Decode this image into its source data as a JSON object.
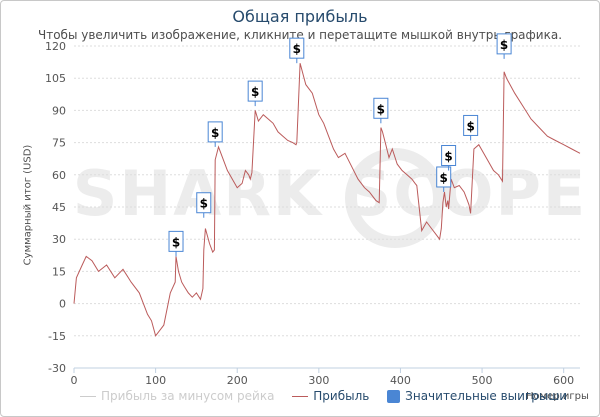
{
  "chart_data": {
    "type": "line",
    "title": "Общая прибыль",
    "subtitle": "Чтобы увеличить изображение, кликните и перетащите мышкой внутрь графика.",
    "xlabel": "Номер игры",
    "ylabel": "Суммарный итог (USD)",
    "xlim": [
      0,
      620
    ],
    "ylim": [
      -30,
      120
    ],
    "x_ticks": [
      0,
      100,
      200,
      300,
      400,
      500,
      600
    ],
    "y_ticks": [
      -30,
      -15,
      0,
      15,
      30,
      45,
      60,
      75,
      90,
      105,
      120
    ],
    "grid": "horizontal",
    "legend_position": "bottom",
    "watermark": "SHARK SCOPE",
    "series": [
      {
        "name": "Прибыль",
        "color": "#bb5b5b",
        "x": [
          0,
          3,
          10,
          15,
          22,
          30,
          40,
          50,
          60,
          70,
          80,
          90,
          95,
          100,
          106,
          110,
          118,
          124,
          125,
          128,
          132,
          135,
          140,
          145,
          150,
          155,
          158,
          159,
          161,
          166,
          170,
          172,
          173,
          177,
          182,
          188,
          194,
          200,
          206,
          210,
          214,
          216,
          218,
          222,
          226,
          232,
          238,
          244,
          250,
          256,
          262,
          268,
          272,
          273,
          277,
          284,
          292,
          300,
          306,
          312,
          318,
          324,
          332,
          340,
          348,
          356,
          362,
          366,
          370,
          374,
          376,
          378,
          382,
          386,
          390,
          396,
          402,
          408,
          414,
          418,
          420,
          426,
          432,
          438,
          444,
          448,
          450,
          452,
          454,
          456,
          458,
          459,
          462,
          466,
          472,
          478,
          482,
          484,
          486,
          490,
          496,
          502,
          508,
          514,
          520,
          525,
          527,
          530,
          540,
          550,
          560,
          570,
          580,
          590,
          600,
          610,
          620
        ],
        "y": [
          0,
          12,
          18,
          22,
          20,
          15,
          18,
          12,
          16,
          10,
          5,
          -5,
          -8,
          -15,
          -12,
          -10,
          5,
          10,
          22,
          15,
          10,
          8,
          5,
          3,
          5,
          2,
          7,
          25,
          35,
          28,
          24,
          25,
          67,
          73,
          68,
          62,
          58,
          54,
          56,
          62,
          60,
          58,
          61,
          90,
          85,
          88,
          86,
          84,
          80,
          78,
          76,
          75,
          74,
          75,
          112,
          102,
          98,
          88,
          84,
          78,
          72,
          68,
          70,
          64,
          58,
          54,
          52,
          50,
          48,
          47,
          82,
          80,
          74,
          68,
          72,
          65,
          62,
          60,
          58,
          56,
          55,
          34,
          38,
          35,
          32,
          30,
          35,
          47,
          52,
          45,
          48,
          44,
          58,
          54,
          55,
          52,
          48,
          46,
          42,
          72,
          74,
          70,
          66,
          62,
          60,
          57,
          108,
          105,
          98,
          92,
          86,
          82,
          78,
          76,
          74,
          72,
          70
        ]
      },
      {
        "name": "Прибыль за минусом рейка",
        "color": "#cccccc",
        "visible": false
      },
      {
        "name": "Значительные выигрыши",
        "color": "#4a86d4",
        "marker_label": "$",
        "points": [
          {
            "x": 125,
            "y": 22
          },
          {
            "x": 159,
            "y": 40
          },
          {
            "x": 173,
            "y": 73
          },
          {
            "x": 222,
            "y": 92
          },
          {
            "x": 273,
            "y": 112
          },
          {
            "x": 376,
            "y": 84
          },
          {
            "x": 453,
            "y": 52
          },
          {
            "x": 459,
            "y": 62
          },
          {
            "x": 486,
            "y": 76
          },
          {
            "x": 527,
            "y": 114
          }
        ]
      }
    ]
  }
}
